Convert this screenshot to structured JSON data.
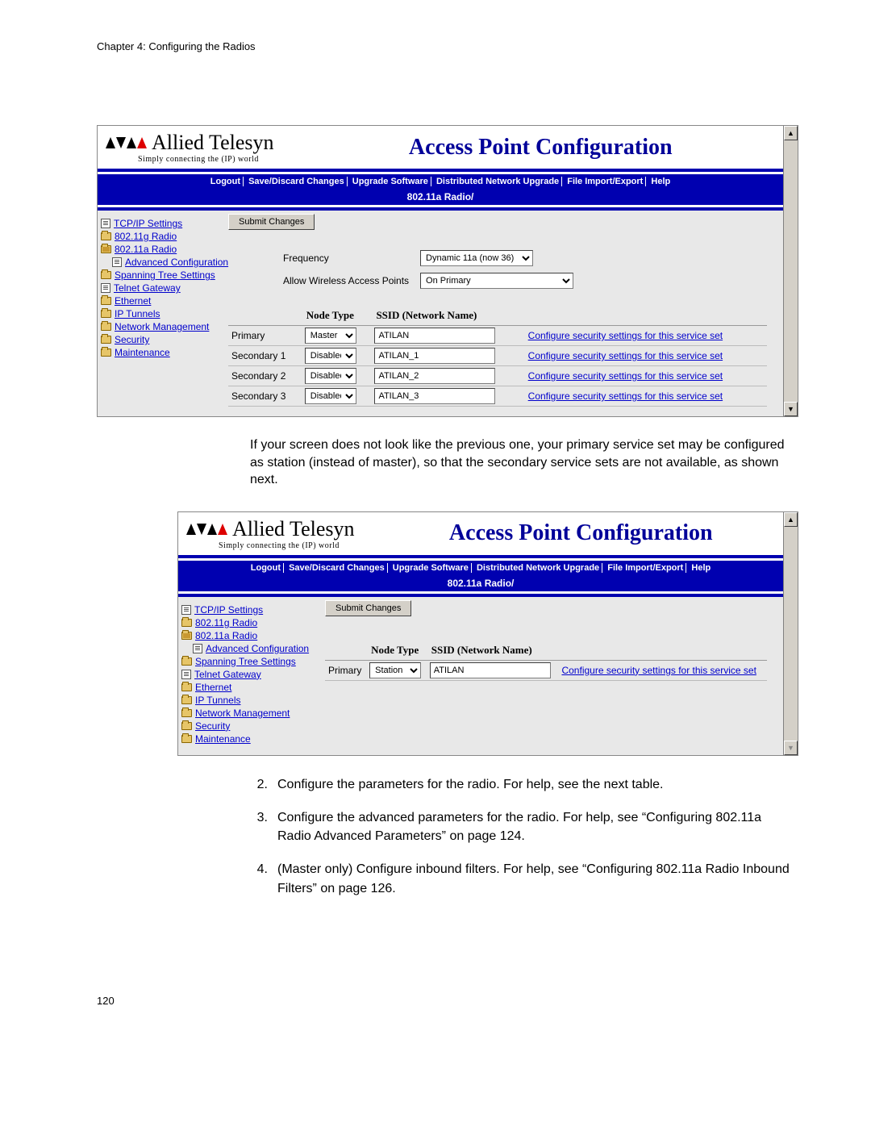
{
  "chapter": "Chapter 4: Configuring the Radios",
  "page_number": "120",
  "logo_text": "Allied Telesyn",
  "logo_tag": "Simply connecting the (IP) world",
  "ap_title": "Access Point Configuration",
  "nav": {
    "logout": "Logout",
    "save": "Save/Discard Changes",
    "upgrade": "Upgrade Software",
    "dist": "Distributed Network Upgrade",
    "file": "File Import/Export",
    "help": "Help"
  },
  "subnav": "802.11a Radio/",
  "submit_label": "Submit Changes",
  "sidebar": {
    "tcpip": "TCP/IP Settings",
    "r11g": "802.11g Radio",
    "r11a": "802.11a Radio",
    "advcfg": "Advanced Configuration",
    "stp": "Spanning Tree Settings",
    "telnet": "Telnet Gateway",
    "eth": "Ethernet",
    "iptun": "IP Tunnels",
    "netmgmt": "Network Management",
    "sec": "Security",
    "maint": "Maintenance"
  },
  "params": {
    "freq_label": "Frequency",
    "freq_value": "Dynamic 11a (now 36)",
    "allow_label": "Allow Wireless Access Points",
    "allow_value": "On Primary"
  },
  "svc_headers": {
    "nodetype": "Node Type",
    "ssid": "SSID (Network Name)"
  },
  "svc_link": "Configure security settings for this service set",
  "rows1": [
    {
      "label": "Primary",
      "node": "Master",
      "ssid": "ATILAN"
    },
    {
      "label": "Secondary 1",
      "node": "Disabled",
      "ssid": "ATILAN_1"
    },
    {
      "label": "Secondary 2",
      "node": "Disabled",
      "ssid": "ATILAN_2"
    },
    {
      "label": "Secondary 3",
      "node": "Disabled",
      "ssid": "ATILAN_3"
    }
  ],
  "rows2": [
    {
      "label": "Primary",
      "node": "Station",
      "ssid": "ATILAN"
    }
  ],
  "body1": "If your screen does not look like the previous one, your primary service set may be configured as station (instead of master), so that the secondary service sets are not available, as shown next.",
  "steps": {
    "s2": "Configure the parameters for the radio. For help, see the next table.",
    "s3": "Configure the advanced parameters for the radio. For help, see “Configuring 802.11a Radio Advanced Parameters” on page 124.",
    "s4": "(Master only) Configure inbound filters. For help, see “Configuring 802.11a Radio Inbound Filters” on page 126."
  }
}
